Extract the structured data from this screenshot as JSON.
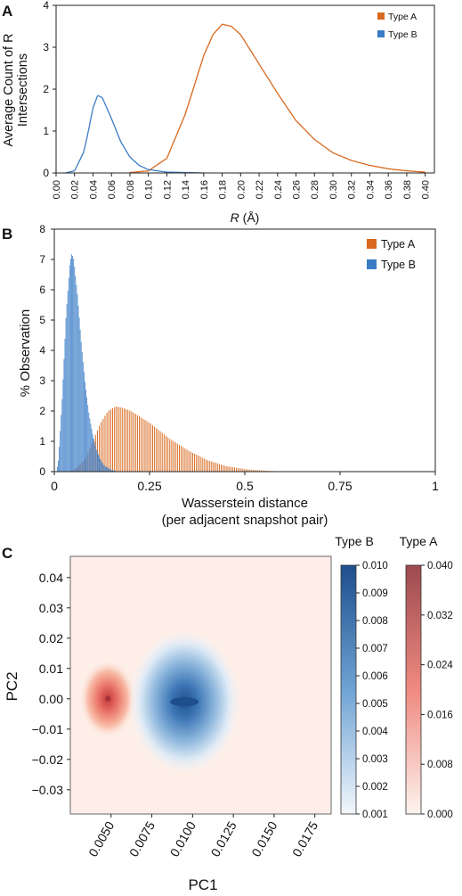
{
  "colors": {
    "typeA": "#d8691f",
    "typeB": "#3a7cc7",
    "overlap": "#6b5f76",
    "bg_c": "#fdeee8"
  },
  "chart_data": [
    {
      "panel": "A",
      "type": "line",
      "ylabel": "Average Count of R Intersections",
      "ylabel_lines": [
        "Average Count of R",
        "Intersections"
      ],
      "xlabel_italic": "R",
      "xlabel_unit": " (Å)",
      "xlim": [
        0,
        0.41
      ],
      "ylim": [
        0,
        4
      ],
      "xticks": [
        0.0,
        0.02,
        0.04,
        0.06,
        0.08,
        0.1,
        0.12,
        0.14,
        0.16,
        0.18,
        0.2,
        0.22,
        0.24,
        0.26,
        0.28,
        0.3,
        0.32,
        0.34,
        0.36,
        0.38,
        0.4
      ],
      "xtick_labels": [
        "0.00",
        "0.02",
        "0.04",
        "0.06",
        "0.08",
        "0.10",
        "0.12",
        "0.14",
        "0.16",
        "0.18",
        "0.20",
        "0.22",
        "0.24",
        "0.26",
        "0.28",
        "0.30",
        "0.32",
        "0.34",
        "0.36",
        "0.38",
        "0.40"
      ],
      "yticks": [
        0,
        1,
        2,
        3,
        4
      ],
      "ytick_labels": [
        "0",
        "1",
        "2",
        "3",
        "4"
      ],
      "legend": [
        "Type A",
        "Type B"
      ],
      "series": [
        {
          "name": "Type A",
          "x": [
            0.08,
            0.1,
            0.12,
            0.14,
            0.16,
            0.17,
            0.18,
            0.19,
            0.2,
            0.22,
            0.24,
            0.26,
            0.28,
            0.3,
            0.32,
            0.34,
            0.36,
            0.38,
            0.4
          ],
          "y": [
            0.01,
            0.05,
            0.35,
            1.4,
            2.8,
            3.3,
            3.55,
            3.5,
            3.3,
            2.6,
            1.9,
            1.25,
            0.8,
            0.48,
            0.3,
            0.18,
            0.1,
            0.05,
            0.02
          ]
        },
        {
          "name": "Type B",
          "x": [
            0.01,
            0.02,
            0.03,
            0.035,
            0.04,
            0.045,
            0.05,
            0.06,
            0.07,
            0.08,
            0.09,
            0.1,
            0.12,
            0.14,
            0.16
          ],
          "y": [
            0.0,
            0.05,
            0.5,
            1.0,
            1.55,
            1.85,
            1.8,
            1.3,
            0.75,
            0.38,
            0.18,
            0.08,
            0.02,
            0.01,
            0.0
          ]
        }
      ]
    },
    {
      "panel": "B",
      "type": "bar",
      "ylabel": "% Observation",
      "xlabel_lines": [
        "Wasserstein distance",
        "(per adjacent snapshot pair)"
      ],
      "xlim": [
        0,
        1
      ],
      "ylim": [
        0,
        8
      ],
      "xticks": [
        0,
        0.25,
        0.5,
        0.75,
        1
      ],
      "xtick_labels": [
        "0",
        "0.25",
        "0.5",
        "0.75",
        "1"
      ],
      "yticks": [
        0,
        1,
        2,
        3,
        4,
        5,
        6,
        7,
        8
      ],
      "ytick_labels": [
        "0",
        "1",
        "2",
        "3",
        "4",
        "5",
        "6",
        "7",
        "8"
      ],
      "legend": [
        "Type A",
        "Type B"
      ],
      "series": [
        {
          "name": "Type A",
          "x": [
            0.03,
            0.05,
            0.08,
            0.1,
            0.12,
            0.14,
            0.16,
            0.18,
            0.2,
            0.25,
            0.3,
            0.35,
            0.4,
            0.45,
            0.5,
            0.55,
            0.6,
            0.65,
            0.7
          ],
          "y": [
            0.0,
            0.05,
            0.4,
            1.0,
            1.6,
            2.0,
            2.15,
            2.1,
            2.0,
            1.6,
            1.1,
            0.7,
            0.38,
            0.18,
            0.08,
            0.03,
            0.01,
            0.005,
            0.0
          ]
        },
        {
          "name": "Type B",
          "x": [
            0.005,
            0.01,
            0.02,
            0.03,
            0.04,
            0.045,
            0.05,
            0.06,
            0.07,
            0.08,
            0.09,
            0.1,
            0.11,
            0.12,
            0.13,
            0.15,
            0.17
          ],
          "y": [
            0.0,
            0.4,
            2.5,
            5.2,
            6.9,
            7.2,
            7.0,
            5.8,
            4.2,
            2.9,
            1.9,
            1.2,
            0.7,
            0.4,
            0.2,
            0.05,
            0.0
          ]
        }
      ]
    },
    {
      "panel": "C",
      "type": "heatmap",
      "xlabel": "PC1",
      "ylabel": "PC2",
      "xlim": [
        0.0025,
        0.0185
      ],
      "ylim": [
        -0.038,
        0.047
      ],
      "xticks": [
        0.005,
        0.0075,
        0.01,
        0.0125,
        0.015,
        0.0175
      ],
      "xtick_labels": [
        "0.0050",
        "0.0075",
        "0.0100",
        "0.0125",
        "0.0150",
        "0.0175"
      ],
      "yticks": [
        0.04,
        0.03,
        0.02,
        0.01,
        0.0,
        -0.01,
        -0.02,
        -0.03
      ],
      "ytick_labels": [
        "0.04",
        "0.03",
        "0.02",
        "0.01",
        "0.00",
        "−0.01",
        "−0.02",
        "−0.03"
      ],
      "series": [
        {
          "name": "Type A",
          "center": [
            0.0048,
            0.0
          ],
          "peak": 0.04
        },
        {
          "name": "Type B",
          "center": [
            0.0095,
            -0.001
          ],
          "peak": 0.01
        }
      ],
      "colorbars": [
        {
          "name": "Type B",
          "ticks": [
            "0.010",
            "0.009",
            "0.008",
            "0.007",
            "0.006",
            "0.005",
            "0.004",
            "0.003",
            "0.002",
            "0.001"
          ]
        },
        {
          "name": "Type A",
          "ticks": [
            "0.040",
            "0.032",
            "0.024",
            "0.016",
            "0.008",
            "0.000"
          ]
        }
      ]
    }
  ],
  "panel_labels": [
    "A",
    "B",
    "C"
  ]
}
